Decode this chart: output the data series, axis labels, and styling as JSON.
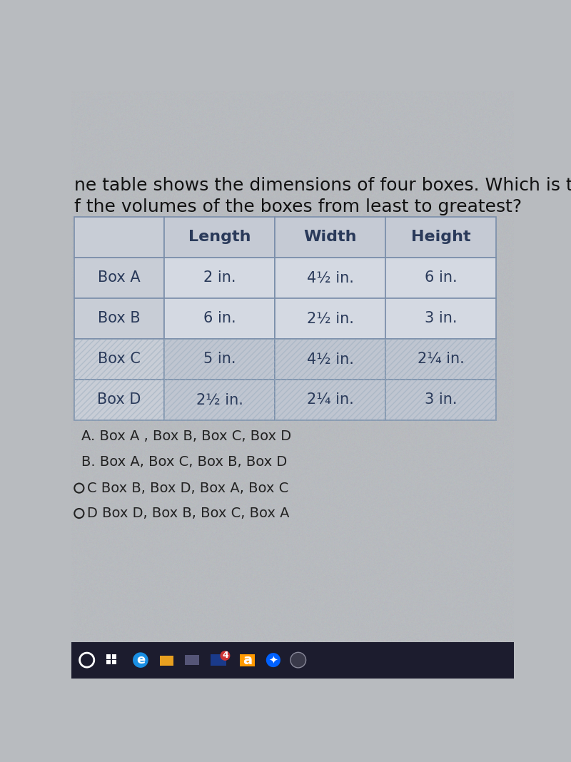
{
  "title_line1": "ne table shows the dimensions of four boxes. Which is the",
  "title_line2": "f the volumes of the boxes from least to greatest?",
  "col_headers": [
    "",
    "Length",
    "Width",
    "Height"
  ],
  "rows": [
    [
      "Box A",
      "2 in.",
      "4½ in.",
      "6 in."
    ],
    [
      "Box B",
      "6 in.",
      "2½ in.",
      "3 in."
    ],
    [
      "Box C",
      "5 in.",
      "4½ in.",
      "2¼ in."
    ],
    [
      "Box D",
      "2½ in.",
      "2¼ in.",
      "3 in."
    ]
  ],
  "choices": [
    "A. Box A , Box B, Box C, Box D",
    "B. Box A, Box C, Box B, Box D",
    "C Box B, Box D, Box A, Box C",
    "D Box D, Box B, Box C, Box A"
  ],
  "bg_color": "#b8bbbf",
  "header_row_bg": "#c5cad4",
  "label_col_bg": "#c8cdd6",
  "data_cell_bg_light": "#d4d9e2",
  "data_cell_bg_dark": "#bfc5d0",
  "table_border_color": "#7a8eaa",
  "text_color": "#2a3a5a",
  "title_color": "#111111",
  "choice_color": "#222222",
  "taskbar_color": "#1c1c2e"
}
